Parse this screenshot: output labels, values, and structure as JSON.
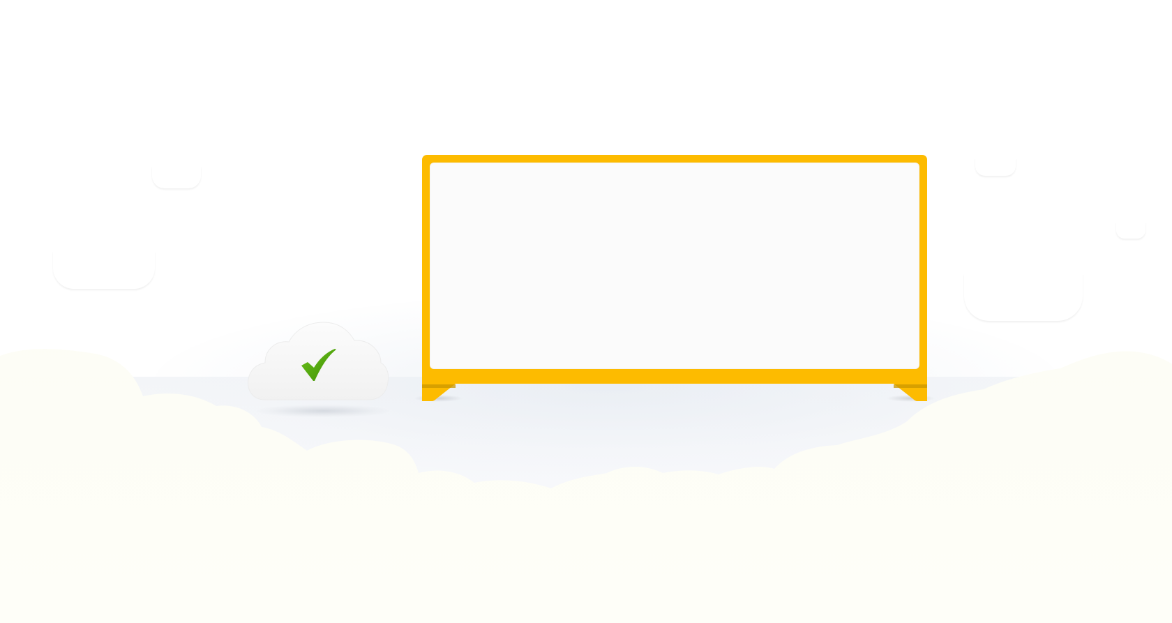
{
  "scene": {
    "icons": {
      "status_cloud": "cloud-icon",
      "status_check": "checkmark-icon",
      "board": "billboard-icon"
    },
    "colors": {
      "board_frame": "#fdbb00",
      "board_frame_shade": "#c99700",
      "board_screen": "#fbfbfb",
      "checkmark": "#4ea20a",
      "cloud": "#f6f6f6",
      "fog": "#fdfdf5"
    }
  },
  "billboard": {
    "message": ""
  }
}
